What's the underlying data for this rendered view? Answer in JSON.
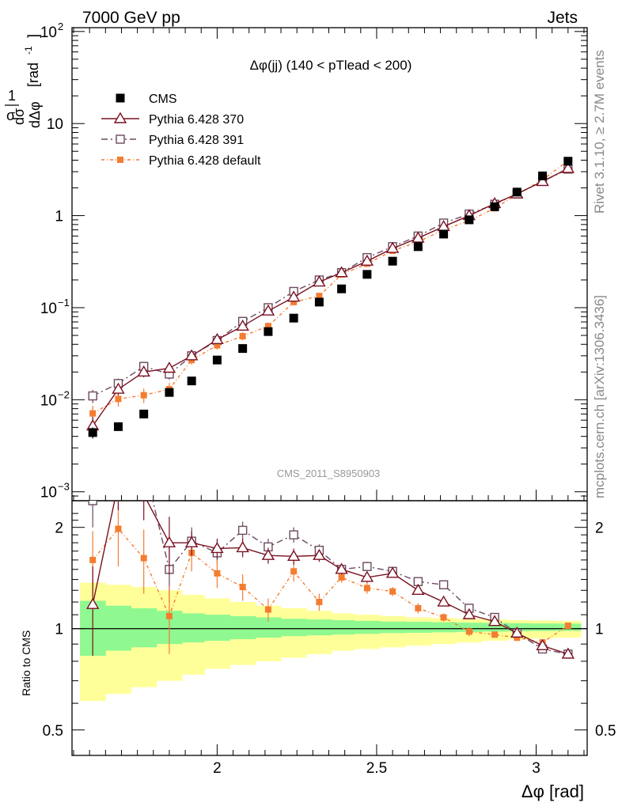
{
  "header": {
    "left": "7000 GeV pp",
    "right": "Jets"
  },
  "side_labels": {
    "rivet": "Rivet 3.1.10, ≥ 2.7M events",
    "mcplots": "mcplots.cern.ch [arXiv:1306.3436]"
  },
  "watermark": "CMS_2011_S8950903",
  "chart_data": [
    {
      "type": "line",
      "title": "Δφ(jj) (140 < pTlead <  200)",
      "ylabel": "1/σ dσ/dΔφ [rad⁻¹]",
      "ylabel_parts": {
        "num": "1",
        "den": "σ",
        "frac_num": "dσ",
        "frac_den": "dΔφ",
        "unit": "[rad",
        "unit_sup": "-1",
        "unit_end": "]"
      },
      "xlabel": "Δφ [rad]",
      "xlim": [
        1.545,
        3.16
      ],
      "ylim": [
        0.0008,
        110
      ],
      "log_y": true,
      "yticks": [
        {
          "v": 0.001,
          "base": "10",
          "exp": "−3"
        },
        {
          "v": 0.01,
          "base": "10",
          "exp": "−2"
        },
        {
          "v": 0.1,
          "base": "10",
          "exp": "−1"
        },
        {
          "v": 1,
          "base": "1",
          "exp": ""
        },
        {
          "v": 10,
          "base": "10",
          "exp": ""
        },
        {
          "v": 100,
          "base": "10",
          "exp": "2"
        }
      ],
      "legend_position": "top-left",
      "x": [
        1.61,
        1.69,
        1.77,
        1.85,
        1.92,
        2.0,
        2.08,
        2.16,
        2.24,
        2.32,
        2.39,
        2.47,
        2.55,
        2.63,
        2.71,
        2.79,
        2.87,
        2.94,
        3.02,
        3.1
      ],
      "series": [
        {
          "name": "CMS",
          "style": "data",
          "color": "#000000",
          "values": [
            0.0044,
            0.0051,
            0.007,
            0.012,
            0.016,
            0.027,
            0.036,
            0.055,
            0.077,
            0.115,
            0.16,
            0.23,
            0.32,
            0.46,
            0.63,
            0.9,
            1.25,
            1.8,
            2.7,
            3.9
          ],
          "errors": [
            0.0006,
            0.0005,
            0.0007,
            0.0012,
            0.0015,
            0.002,
            0.003,
            0.004,
            0.005,
            0.007,
            0.009,
            0.012,
            0.016,
            0.022,
            0.03,
            0.04,
            0.05,
            0.07,
            0.1,
            0.15
          ]
        },
        {
          "name": "Pythia 6.428 370",
          "style": "triangle",
          "color": "#7a1020",
          "values": [
            0.0052,
            0.013,
            0.02,
            0.022,
            0.03,
            0.045,
            0.063,
            0.092,
            0.13,
            0.19,
            0.24,
            0.32,
            0.44,
            0.57,
            0.76,
            1.0,
            1.35,
            1.72,
            2.35,
            3.25
          ],
          "errors": [
            0.0013,
            0.0018,
            0.0025,
            0.0025,
            0.003,
            0.004,
            0.005,
            0.006,
            0.008,
            0.01,
            0.012,
            0.015,
            0.02,
            0.025,
            0.03,
            0.04,
            0.05,
            0.06,
            0.08,
            0.1
          ]
        },
        {
          "name": "Pythia 6.428 391",
          "style": "square-open",
          "color": "#6b4a60",
          "values": [
            0.011,
            0.015,
            0.023,
            0.019,
            0.03,
            0.044,
            0.071,
            0.1,
            0.15,
            0.2,
            0.24,
            0.35,
            0.46,
            0.6,
            0.83,
            1.04,
            1.33,
            1.72,
            2.35,
            3.2
          ],
          "errors": [
            0.0018,
            0.002,
            0.0028,
            0.0025,
            0.003,
            0.004,
            0.005,
            0.006,
            0.008,
            0.01,
            0.012,
            0.015,
            0.02,
            0.025,
            0.03,
            0.04,
            0.05,
            0.06,
            0.08,
            0.1
          ]
        },
        {
          "name": "Pythia 6.428 default",
          "style": "square-filled",
          "color": "#f47c30",
          "values": [
            0.0071,
            0.0102,
            0.0112,
            0.013,
            0.027,
            0.039,
            0.049,
            0.063,
            0.115,
            0.134,
            0.229,
            0.3,
            0.415,
            0.52,
            0.7,
            0.88,
            1.2,
            1.7,
            2.45,
            3.95
          ],
          "errors": [
            0.0015,
            0.0018,
            0.002,
            0.0022,
            0.003,
            0.004,
            0.005,
            0.006,
            0.008,
            0.01,
            0.012,
            0.015,
            0.02,
            0.025,
            0.03,
            0.04,
            0.05,
            0.06,
            0.08,
            0.1
          ]
        }
      ]
    },
    {
      "type": "line",
      "title": "",
      "ylabel": "Ratio to CMS",
      "xlabel": "Δφ [rad]",
      "xlim": [
        1.545,
        3.16
      ],
      "ylim": [
        0.42,
        2.4
      ],
      "log_y": true,
      "yticks": [
        {
          "v": 0.5,
          "label": "0.5"
        },
        {
          "v": 1,
          "label": "1"
        },
        {
          "v": 2,
          "label": "2"
        }
      ],
      "xticks": [
        {
          "v": 2,
          "label": "2"
        },
        {
          "v": 2.5,
          "label": "2.5"
        },
        {
          "v": 3,
          "label": "3"
        }
      ],
      "x_edges": [
        1.57,
        1.65,
        1.73,
        1.81,
        1.89,
        1.96,
        2.04,
        2.12,
        2.2,
        2.28,
        2.36,
        2.43,
        2.51,
        2.59,
        2.67,
        2.75,
        2.83,
        2.91,
        2.98,
        3.06,
        3.14
      ],
      "bands": {
        "stat_color": "#90f890",
        "total_color": "#ffff99",
        "stat_lo": [
          0.83,
          0.86,
          0.88,
          0.9,
          0.91,
          0.92,
          0.93,
          0.94,
          0.95,
          0.955,
          0.96,
          0.965,
          0.97,
          0.972,
          0.975,
          0.978,
          0.98,
          0.982,
          0.984,
          0.985
        ],
        "stat_hi": [
          1.21,
          1.17,
          1.15,
          1.13,
          1.11,
          1.1,
          1.09,
          1.08,
          1.07,
          1.065,
          1.06,
          1.055,
          1.05,
          1.048,
          1.045,
          1.042,
          1.04,
          1.038,
          1.036,
          1.035
        ],
        "tot_lo": [
          0.61,
          0.64,
          0.67,
          0.7,
          0.73,
          0.76,
          0.78,
          0.8,
          0.82,
          0.84,
          0.86,
          0.87,
          0.88,
          0.89,
          0.9,
          0.91,
          0.92,
          0.93,
          0.935,
          0.94
        ],
        "tot_hi": [
          1.37,
          1.35,
          1.33,
          1.3,
          1.26,
          1.23,
          1.2,
          1.17,
          1.15,
          1.13,
          1.11,
          1.1,
          1.09,
          1.08,
          1.075,
          1.07,
          1.065,
          1.06,
          1.058,
          1.055
        ]
      },
      "x": [
        1.61,
        1.69,
        1.77,
        1.85,
        1.92,
        2.0,
        2.08,
        2.16,
        2.24,
        2.32,
        2.39,
        2.47,
        2.55,
        2.63,
        2.71,
        2.79,
        2.87,
        2.94,
        3.02,
        3.1
      ],
      "series": [
        {
          "name": "Pythia 6.428 370",
          "style": "triangle",
          "color": "#7a1020",
          "values": [
            1.18,
            2.7,
            2.5,
            1.8,
            1.8,
            1.73,
            1.74,
            1.65,
            1.64,
            1.65,
            1.5,
            1.42,
            1.46,
            1.3,
            1.2,
            1.1,
            1.05,
            0.97,
            0.89,
            0.84
          ],
          "errors": [
            0.35,
            0.45,
            0.4,
            0.35,
            0.15,
            0.12,
            0.11,
            0.09,
            0.09,
            0.07,
            0.05,
            0.05,
            0.04,
            0.04,
            0.03,
            0.03,
            0.02,
            0.02,
            0.02,
            0.02
          ]
        },
        {
          "name": "Pythia 6.428 391",
          "style": "square-open",
          "color": "#6b4a60",
          "values": [
            2.4,
            2.95,
            3.1,
            1.5,
            1.82,
            1.68,
            1.96,
            1.75,
            1.9,
            1.71,
            1.5,
            1.53,
            1.48,
            1.38,
            1.35,
            1.15,
            1.08,
            0.97,
            0.87,
            0.84
          ],
          "errors": [
            0.4,
            0.5,
            0.45,
            0.3,
            0.18,
            0.13,
            0.12,
            0.1,
            0.1,
            0.07,
            0.05,
            0.05,
            0.04,
            0.04,
            0.03,
            0.03,
            0.02,
            0.02,
            0.02,
            0.02
          ]
        },
        {
          "name": "Pythia 6.428 default",
          "style": "square-filled",
          "color": "#f47c30",
          "values": [
            1.6,
            1.98,
            1.62,
            1.09,
            1.68,
            1.46,
            1.33,
            1.14,
            1.48,
            1.2,
            1.42,
            1.32,
            1.29,
            1.15,
            1.08,
            0.98,
            0.96,
            0.94,
            0.91,
            1.02
          ],
          "errors": [
            0.35,
            0.45,
            0.35,
            0.25,
            0.2,
            0.14,
            0.12,
            0.09,
            0.1,
            0.07,
            0.05,
            0.05,
            0.04,
            0.04,
            0.03,
            0.03,
            0.02,
            0.02,
            0.02,
            0.02
          ]
        }
      ]
    }
  ]
}
